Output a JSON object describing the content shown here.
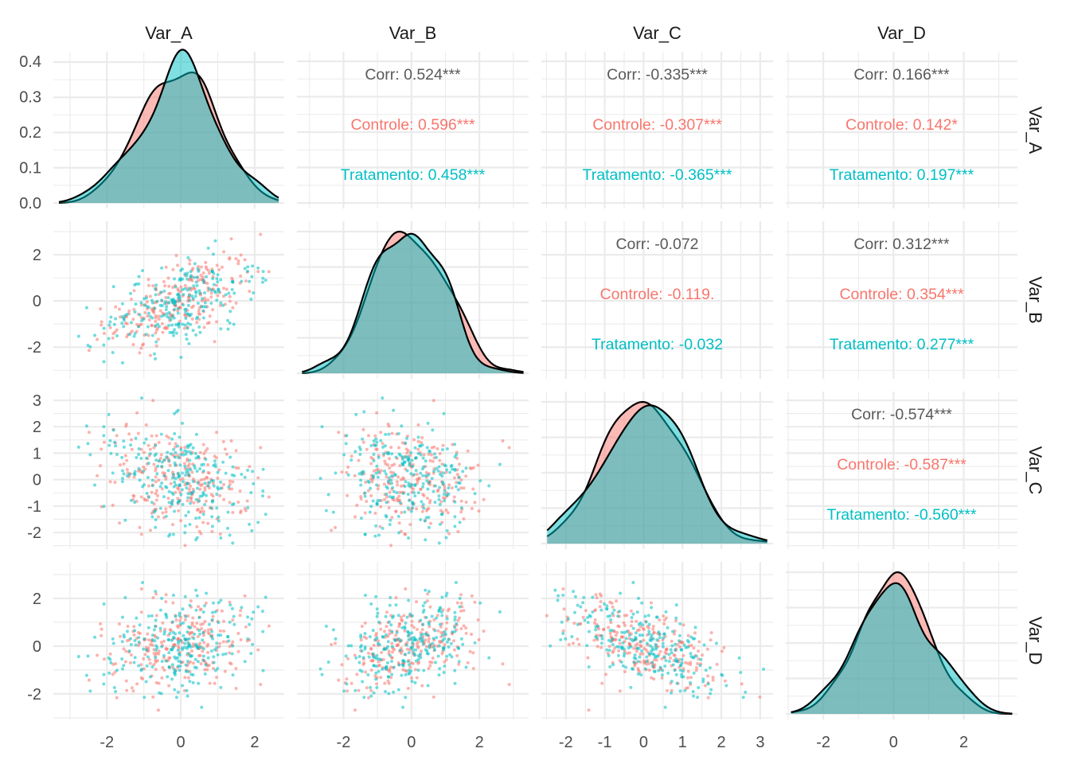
{
  "chart_data": {
    "type": "scatter-matrix",
    "variables": [
      "Var_A",
      "Var_B",
      "Var_C",
      "Var_D"
    ],
    "groups": [
      {
        "name": "Controle",
        "color": "#F8766D"
      },
      {
        "name": "Tratamento",
        "color": "#00BFC4"
      }
    ],
    "axis_ranges": {
      "Var_A": [
        -3.45,
        2.8
      ],
      "Var_B": [
        -3.37,
        3.45
      ],
      "Var_C": [
        -2.63,
        3.33
      ],
      "Var_D": [
        -3.07,
        3.53
      ]
    },
    "x_ticks": {
      "Var_A": [
        "-2",
        "0",
        "2"
      ],
      "Var_B": [
        "-2",
        "0",
        "2"
      ],
      "Var_C": [
        "-2",
        "-1",
        "0",
        "1",
        "2",
        "3"
      ],
      "Var_D": [
        "-2",
        "0",
        "2"
      ]
    },
    "y_ticks": {
      "Var_A": [
        "0.0",
        "0.1",
        "0.2",
        "0.3",
        "0.4"
      ],
      "Var_B": [
        "-2",
        "0",
        "2"
      ],
      "Var_C": [
        "-2",
        "-1",
        "0",
        "1",
        "2",
        "3"
      ],
      "Var_D": [
        "-2",
        "0",
        "2"
      ]
    },
    "density_ylim": [
      0,
      0.4
    ],
    "grid": true,
    "correlations": [
      {
        "row": "Var_A",
        "col": "Var_B",
        "labels": [
          "Corr: 0.524***",
          "Controle: 0.596***",
          "Tratamento: 0.458***"
        ],
        "values": [
          0.524,
          0.596,
          0.458
        ]
      },
      {
        "row": "Var_A",
        "col": "Var_C",
        "labels": [
          "Corr: -0.335***",
          "Controle: -0.307***",
          "Tratamento: -0.365***"
        ],
        "values": [
          -0.335,
          -0.307,
          -0.365
        ]
      },
      {
        "row": "Var_A",
        "col": "Var_D",
        "labels": [
          "Corr: 0.166***",
          "Controle: 0.142*",
          "Tratamento: 0.197***"
        ],
        "values": [
          0.166,
          0.142,
          0.197
        ]
      },
      {
        "row": "Var_B",
        "col": "Var_C",
        "labels": [
          "Corr: -0.072",
          "Controle: -0.119.",
          "Tratamento: -0.032"
        ],
        "values": [
          -0.072,
          -0.119,
          -0.032
        ]
      },
      {
        "row": "Var_B",
        "col": "Var_D",
        "labels": [
          "Corr: 0.312***",
          "Controle: 0.354***",
          "Tratamento: 0.277***"
        ],
        "values": [
          0.312,
          0.354,
          0.277
        ]
      },
      {
        "row": "Var_C",
        "col": "Var_D",
        "labels": [
          "Corr: -0.574***",
          "Controle: -0.587***",
          "Tratamento: -0.560***"
        ],
        "values": [
          -0.574,
          -0.587,
          -0.56
        ]
      }
    ]
  }
}
